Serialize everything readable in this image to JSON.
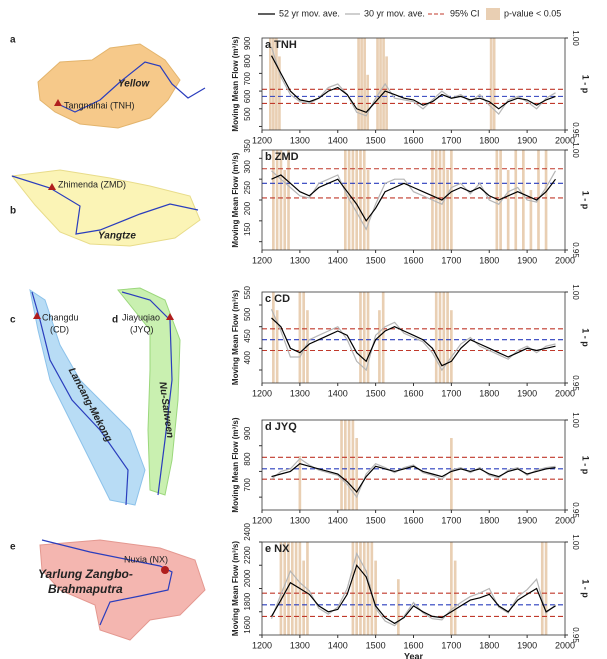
{
  "maps": [
    {
      "letter": "a",
      "river": "Yellow",
      "station": [
        "Tangnaihai (TNH)"
      ]
    },
    {
      "letter": "b",
      "river": "Yangtze",
      "station": [
        "Zhimenda (ZMD)"
      ]
    },
    {
      "letter": "c",
      "river": "Lancang-Mekong",
      "station": [
        "Changdu",
        "(CD)"
      ]
    },
    {
      "letter": "d",
      "river": "Nu-Salween",
      "station": [
        "Jiayuqiao",
        "(JYQ)"
      ]
    },
    {
      "letter": "e",
      "river": [
        "Yarlung Zangbo-",
        "Brahmaputra"
      ],
      "station": [
        "Nuxia (NX)"
      ]
    }
  ],
  "chart_data": [
    {
      "type": "line",
      "title": "a TNH",
      "ylabel": "Moving Mean Flow (m³/s)",
      "y2label": "1 - p",
      "xlabel": "Year",
      "x": [
        1225,
        1250,
        1275,
        1300,
        1325,
        1350,
        1375,
        1400,
        1425,
        1450,
        1475,
        1500,
        1525,
        1550,
        1575,
        1600,
        1625,
        1650,
        1675,
        1700,
        1725,
        1750,
        1775,
        1800,
        1825,
        1850,
        1875,
        1900,
        1925,
        1950,
        1975
      ],
      "series": [
        {
          "name": "52 yr mov. ave.",
          "color": "#000000",
          "values": [
            900,
            800,
            700,
            650,
            640,
            660,
            700,
            720,
            680,
            600,
            580,
            640,
            700,
            680,
            660,
            650,
            620,
            640,
            680,
            660,
            670,
            650,
            660,
            640,
            600,
            640,
            660,
            650,
            620,
            650,
            670
          ]
        },
        {
          "name": "30 yr mov. ave.",
          "color": "#b5b5b5",
          "values": [
            950,
            780,
            680,
            640,
            630,
            660,
            720,
            740,
            680,
            580,
            560,
            660,
            740,
            660,
            650,
            640,
            600,
            650,
            700,
            660,
            680,
            640,
            680,
            620,
            570,
            650,
            670,
            640,
            600,
            660,
            690
          ]
        }
      ],
      "ci": {
        "name": "95% CI",
        "color": "#c0392b",
        "values": [
          710,
          630
        ]
      },
      "mean": {
        "color": "#2a3dbd",
        "value": 670
      },
      "significance": {
        "name": "p-value < 0.05",
        "color": "#e9cfb3",
        "axis": "y2",
        "x": [
          1222,
          1230,
          1238,
          1246,
          1455,
          1463,
          1471,
          1479,
          1505,
          1513,
          1521,
          1529,
          1805,
          1813
        ],
        "values": [
          1,
          1,
          1,
          0.99,
          1,
          1,
          1,
          0.98,
          1,
          1,
          1,
          0.99,
          1,
          1
        ]
      },
      "xlim": [
        1200,
        2000
      ],
      "xticks": [
        1200,
        1300,
        1400,
        1500,
        1600,
        1700,
        1800,
        1900,
        2000
      ],
      "ylim": [
        480,
        1000
      ],
      "yticks": [
        500,
        600,
        700,
        800,
        900
      ],
      "y2lim": [
        0.95,
        1
      ],
      "y2ticks": [
        0.95,
        {
          "value": 1,
          "label": "1.00"
        }
      ]
    },
    {
      "type": "line",
      "title": "b ZMD",
      "ylabel": "Moving Mean Flow (m³/s)",
      "y2label": "1 - p",
      "x": [
        1225,
        1250,
        1275,
        1300,
        1325,
        1350,
        1375,
        1400,
        1425,
        1450,
        1475,
        1500,
        1525,
        1550,
        1575,
        1600,
        1625,
        1650,
        1675,
        1700,
        1725,
        1750,
        1775,
        1800,
        1825,
        1850,
        1875,
        1900,
        1925,
        1950,
        1975
      ],
      "series": [
        {
          "color": "#000000",
          "values": [
            300,
            310,
            290,
            270,
            260,
            280,
            290,
            300,
            270,
            240,
            200,
            230,
            270,
            280,
            290,
            280,
            270,
            260,
            250,
            270,
            280,
            270,
            280,
            260,
            250,
            260,
            270,
            260,
            250,
            270,
            300
          ]
        },
        {
          "color": "#b5b5b5",
          "values": [
            320,
            300,
            280,
            260,
            255,
            290,
            300,
            310,
            260,
            220,
            180,
            240,
            290,
            300,
            300,
            270,
            260,
            250,
            240,
            280,
            290,
            265,
            290,
            250,
            240,
            270,
            280,
            250,
            245,
            280,
            320
          ]
        }
      ],
      "ci": {
        "color": "#c0392b",
        "values": [
          325,
          255
        ]
      },
      "mean": {
        "color": "#2a3dbd",
        "value": 290
      },
      "significance": {
        "color": "#e9cfb3",
        "axis": "y2",
        "x": [
          1230,
          1240,
          1250,
          1260,
          1270,
          1420,
          1430,
          1440,
          1450,
          1460,
          1470,
          1480,
          1650,
          1660,
          1670,
          1680,
          1690,
          1700,
          1820,
          1830,
          1850,
          1870,
          1890,
          1910,
          1930,
          1950
        ],
        "values": [
          1,
          1,
          1,
          0.99,
          1,
          1,
          1,
          1,
          1,
          1,
          1,
          0.99,
          1,
          1,
          1,
          1,
          0.99,
          1,
          1,
          1,
          0.99,
          1,
          1,
          0.98,
          1,
          1
        ]
      },
      "xlim": [
        1200,
        2000
      ],
      "xticks": [
        1200,
        1300,
        1400,
        1500,
        1600,
        1700,
        1800,
        1900,
        2000
      ],
      "ylim": [
        130,
        370
      ],
      "yticks": [
        150,
        200,
        250,
        300,
        350
      ],
      "y2lim": [
        0.95,
        1
      ],
      "y2ticks": [
        0.95,
        {
          "value": 1,
          "label": "1.00"
        }
      ]
    },
    {
      "type": "line",
      "title": "c CD",
      "ylabel": "Moving Mean Flow (m³/s)",
      "y2label": "1 - p",
      "x": [
        1225,
        1250,
        1275,
        1300,
        1325,
        1350,
        1375,
        1400,
        1425,
        1450,
        1475,
        1500,
        1525,
        1550,
        1575,
        1600,
        1625,
        1650,
        1675,
        1700,
        1725,
        1750,
        1775,
        1800,
        1825,
        1850,
        1875,
        1900,
        1925,
        1950,
        1975
      ],
      "series": [
        {
          "color": "#000000",
          "values": [
            520,
            500,
            450,
            440,
            460,
            470,
            480,
            490,
            480,
            440,
            420,
            470,
            490,
            500,
            490,
            480,
            470,
            450,
            410,
            420,
            450,
            470,
            460,
            450,
            440,
            430,
            440,
            450,
            445,
            450,
            455
          ]
        },
        {
          "color": "#b5b5b5",
          "values": [
            540,
            490,
            430,
            430,
            470,
            480,
            490,
            500,
            470,
            420,
            400,
            480,
            500,
            510,
            485,
            475,
            465,
            440,
            400,
            430,
            460,
            475,
            455,
            445,
            435,
            425,
            445,
            455,
            440,
            455,
            460
          ]
        }
      ],
      "ci": {
        "color": "#c0392b",
        "values": [
          495,
          445
        ]
      },
      "mean": {
        "color": "#2a3dbd",
        "value": 470
      },
      "significance": {
        "color": "#e9cfb3",
        "axis": "y2",
        "x": [
          1230,
          1240,
          1300,
          1310,
          1320,
          1460,
          1470,
          1480,
          1510,
          1520,
          1660,
          1670,
          1680,
          1690,
          1700
        ],
        "values": [
          1,
          0.99,
          1,
          1,
          0.99,
          1,
          1,
          1,
          0.99,
          1,
          1,
          1,
          1,
          1,
          0.99
        ]
      },
      "xlim": [
        1200,
        2000
      ],
      "xticks": [
        1200,
        1300,
        1400,
        1500,
        1600,
        1700,
        1800,
        1900,
        2000
      ],
      "ylim": [
        370,
        580
      ],
      "yticks": [
        400,
        450,
        500,
        550
      ],
      "y2lim": [
        0.95,
        1
      ],
      "y2ticks": [
        0.95,
        {
          "value": 1,
          "label": "1.00"
        }
      ]
    },
    {
      "type": "line",
      "title": "d JYQ",
      "ylabel": "Moving Mean Flow (m³/s)",
      "y2label": "1 - p",
      "x": [
        1225,
        1250,
        1275,
        1300,
        1325,
        1350,
        1375,
        1400,
        1425,
        1450,
        1475,
        1500,
        1525,
        1550,
        1575,
        1600,
        1625,
        1650,
        1675,
        1700,
        1725,
        1750,
        1775,
        1800,
        1825,
        1850,
        1875,
        1900,
        1925,
        1950,
        1975
      ],
      "series": [
        {
          "color": "#000000",
          "values": [
            780,
            790,
            800,
            830,
            820,
            810,
            800,
            790,
            760,
            720,
            780,
            820,
            810,
            800,
            810,
            820,
            800,
            790,
            780,
            800,
            810,
            800,
            810,
            790,
            780,
            800,
            810,
            790,
            800,
            810,
            815
          ]
        },
        {
          "color": "#b5b5b5",
          "values": [
            770,
            800,
            810,
            850,
            825,
            805,
            795,
            785,
            750,
            700,
            790,
            830,
            815,
            795,
            815,
            825,
            795,
            785,
            770,
            805,
            815,
            795,
            815,
            785,
            775,
            805,
            815,
            785,
            805,
            815,
            820
          ]
        }
      ],
      "ci": {
        "color": "#c0392b",
        "values": [
          855,
          770
        ]
      },
      "mean": {
        "color": "#2a3dbd",
        "value": 810
      },
      "significance": {
        "color": "#e9cfb3",
        "axis": "y2",
        "x": [
          1300,
          1410,
          1420,
          1430,
          1440,
          1450,
          1700
        ],
        "values": [
          0.98,
          1,
          1,
          1,
          1,
          0.99,
          0.99
        ]
      },
      "xlim": [
        1200,
        2000
      ],
      "xticks": [
        1200,
        1300,
        1400,
        1500,
        1600,
        1700,
        1800,
        1900,
        2000
      ],
      "ylim": [
        650,
        1000
      ],
      "yticks": [
        700,
        800,
        900
      ],
      "y2lim": [
        0.95,
        1
      ],
      "y2ticks": [
        0.95,
        {
          "value": 1,
          "label": "1.00"
        }
      ]
    },
    {
      "type": "line",
      "title": "e NX",
      "ylabel": "Moving Mean Flow (m³/s)",
      "y2label": "1 - p",
      "x": [
        1225,
        1250,
        1275,
        1300,
        1325,
        1350,
        1375,
        1400,
        1425,
        1450,
        1475,
        1500,
        1525,
        1550,
        1575,
        1600,
        1625,
        1650,
        1675,
        1700,
        1725,
        1750,
        1775,
        1800,
        1825,
        1850,
        1875,
        1900,
        1925,
        1950,
        1975
      ],
      "series": [
        {
          "color": "#000000",
          "values": [
            1760,
            1900,
            2050,
            2000,
            1950,
            1850,
            1800,
            1820,
            1950,
            2200,
            2100,
            1850,
            1750,
            1700,
            1750,
            1850,
            1800,
            1760,
            1750,
            1800,
            1850,
            1900,
            1920,
            1950,
            1850,
            1800,
            1900,
            1950,
            2000,
            1800,
            1850
          ]
        },
        {
          "color": "#b5b5b5",
          "values": [
            1740,
            1950,
            2150,
            2050,
            1980,
            1830,
            1780,
            1840,
            2000,
            2300,
            2150,
            1830,
            1720,
            1680,
            1760,
            1880,
            1790,
            1740,
            1730,
            1820,
            1880,
            1930,
            1960,
            2000,
            1840,
            1790,
            1930,
            1990,
            2080,
            1790,
            1860
          ]
        }
      ],
      "ci": {
        "color": "#c0392b",
        "values": [
          1960,
          1760
        ]
      },
      "mean": {
        "color": "#2a3dbd",
        "value": 1860
      },
      "significance": {
        "color": "#e9cfb3",
        "axis": "y2",
        "x": [
          1250,
          1260,
          1270,
          1280,
          1290,
          1300,
          1310,
          1320,
          1440,
          1450,
          1460,
          1470,
          1480,
          1490,
          1500,
          1560,
          1700,
          1710,
          1940,
          1950
        ],
        "values": [
          1,
          1,
          1,
          1,
          1,
          1,
          0.99,
          1,
          1,
          1,
          1,
          1,
          1,
          1,
          0.99,
          0.98,
          1,
          0.99,
          1,
          1
        ]
      },
      "xlim": [
        1200,
        2000
      ],
      "xticks": [
        1200,
        1300,
        1400,
        1500,
        1600,
        1700,
        1800,
        1900,
        2000
      ],
      "ylim": [
        1600,
        2400
      ],
      "yticks": [
        1600,
        1800,
        2000,
        2200,
        2400
      ],
      "y2lim": [
        0.95,
        1
      ],
      "y2ticks": [
        0.95,
        {
          "value": 1,
          "label": "1.00"
        }
      ]
    }
  ]
}
